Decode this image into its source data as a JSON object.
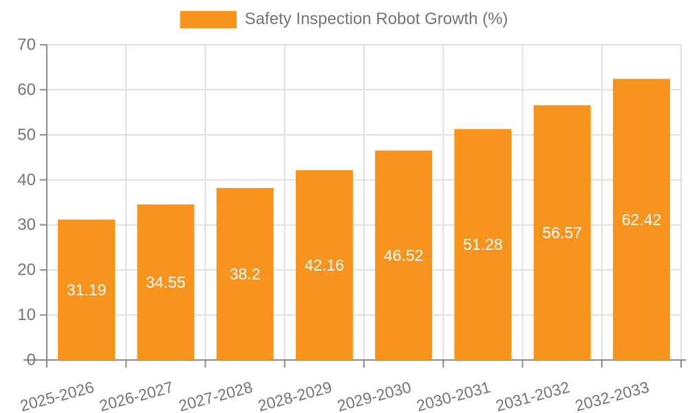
{
  "legend": {
    "label": "Safety Inspection Robot Growth (%)"
  },
  "chart_data": {
    "type": "bar",
    "title": "Safety Inspection Robot Growth (%)",
    "categories": [
      "2025-2026",
      "2026-2027",
      "2027-2028",
      "2028-2029",
      "2029-2030",
      "2030-2031",
      "2031-2032",
      "2032-2033"
    ],
    "values": [
      31.19,
      34.55,
      38.2,
      42.16,
      46.52,
      51.28,
      56.57,
      62.42
    ],
    "value_labels": [
      "31.19",
      "34.55",
      "38.2",
      "42.16",
      "46.52",
      "51.28",
      "56.57",
      "62.42"
    ],
    "xlabel": "",
    "ylabel": "",
    "ylim": [
      0,
      70
    ],
    "yticks": [
      0,
      10,
      20,
      30,
      40,
      50,
      60,
      70
    ],
    "grid": true,
    "legend_position": "top-center",
    "colors": {
      "bar": "#F7941E",
      "value_label": "#FFFFFF",
      "axis_line": "#8C8C8C",
      "grid_line": "#E0E0E0",
      "tick_label": "#757575",
      "legend_text": "#747474"
    }
  }
}
